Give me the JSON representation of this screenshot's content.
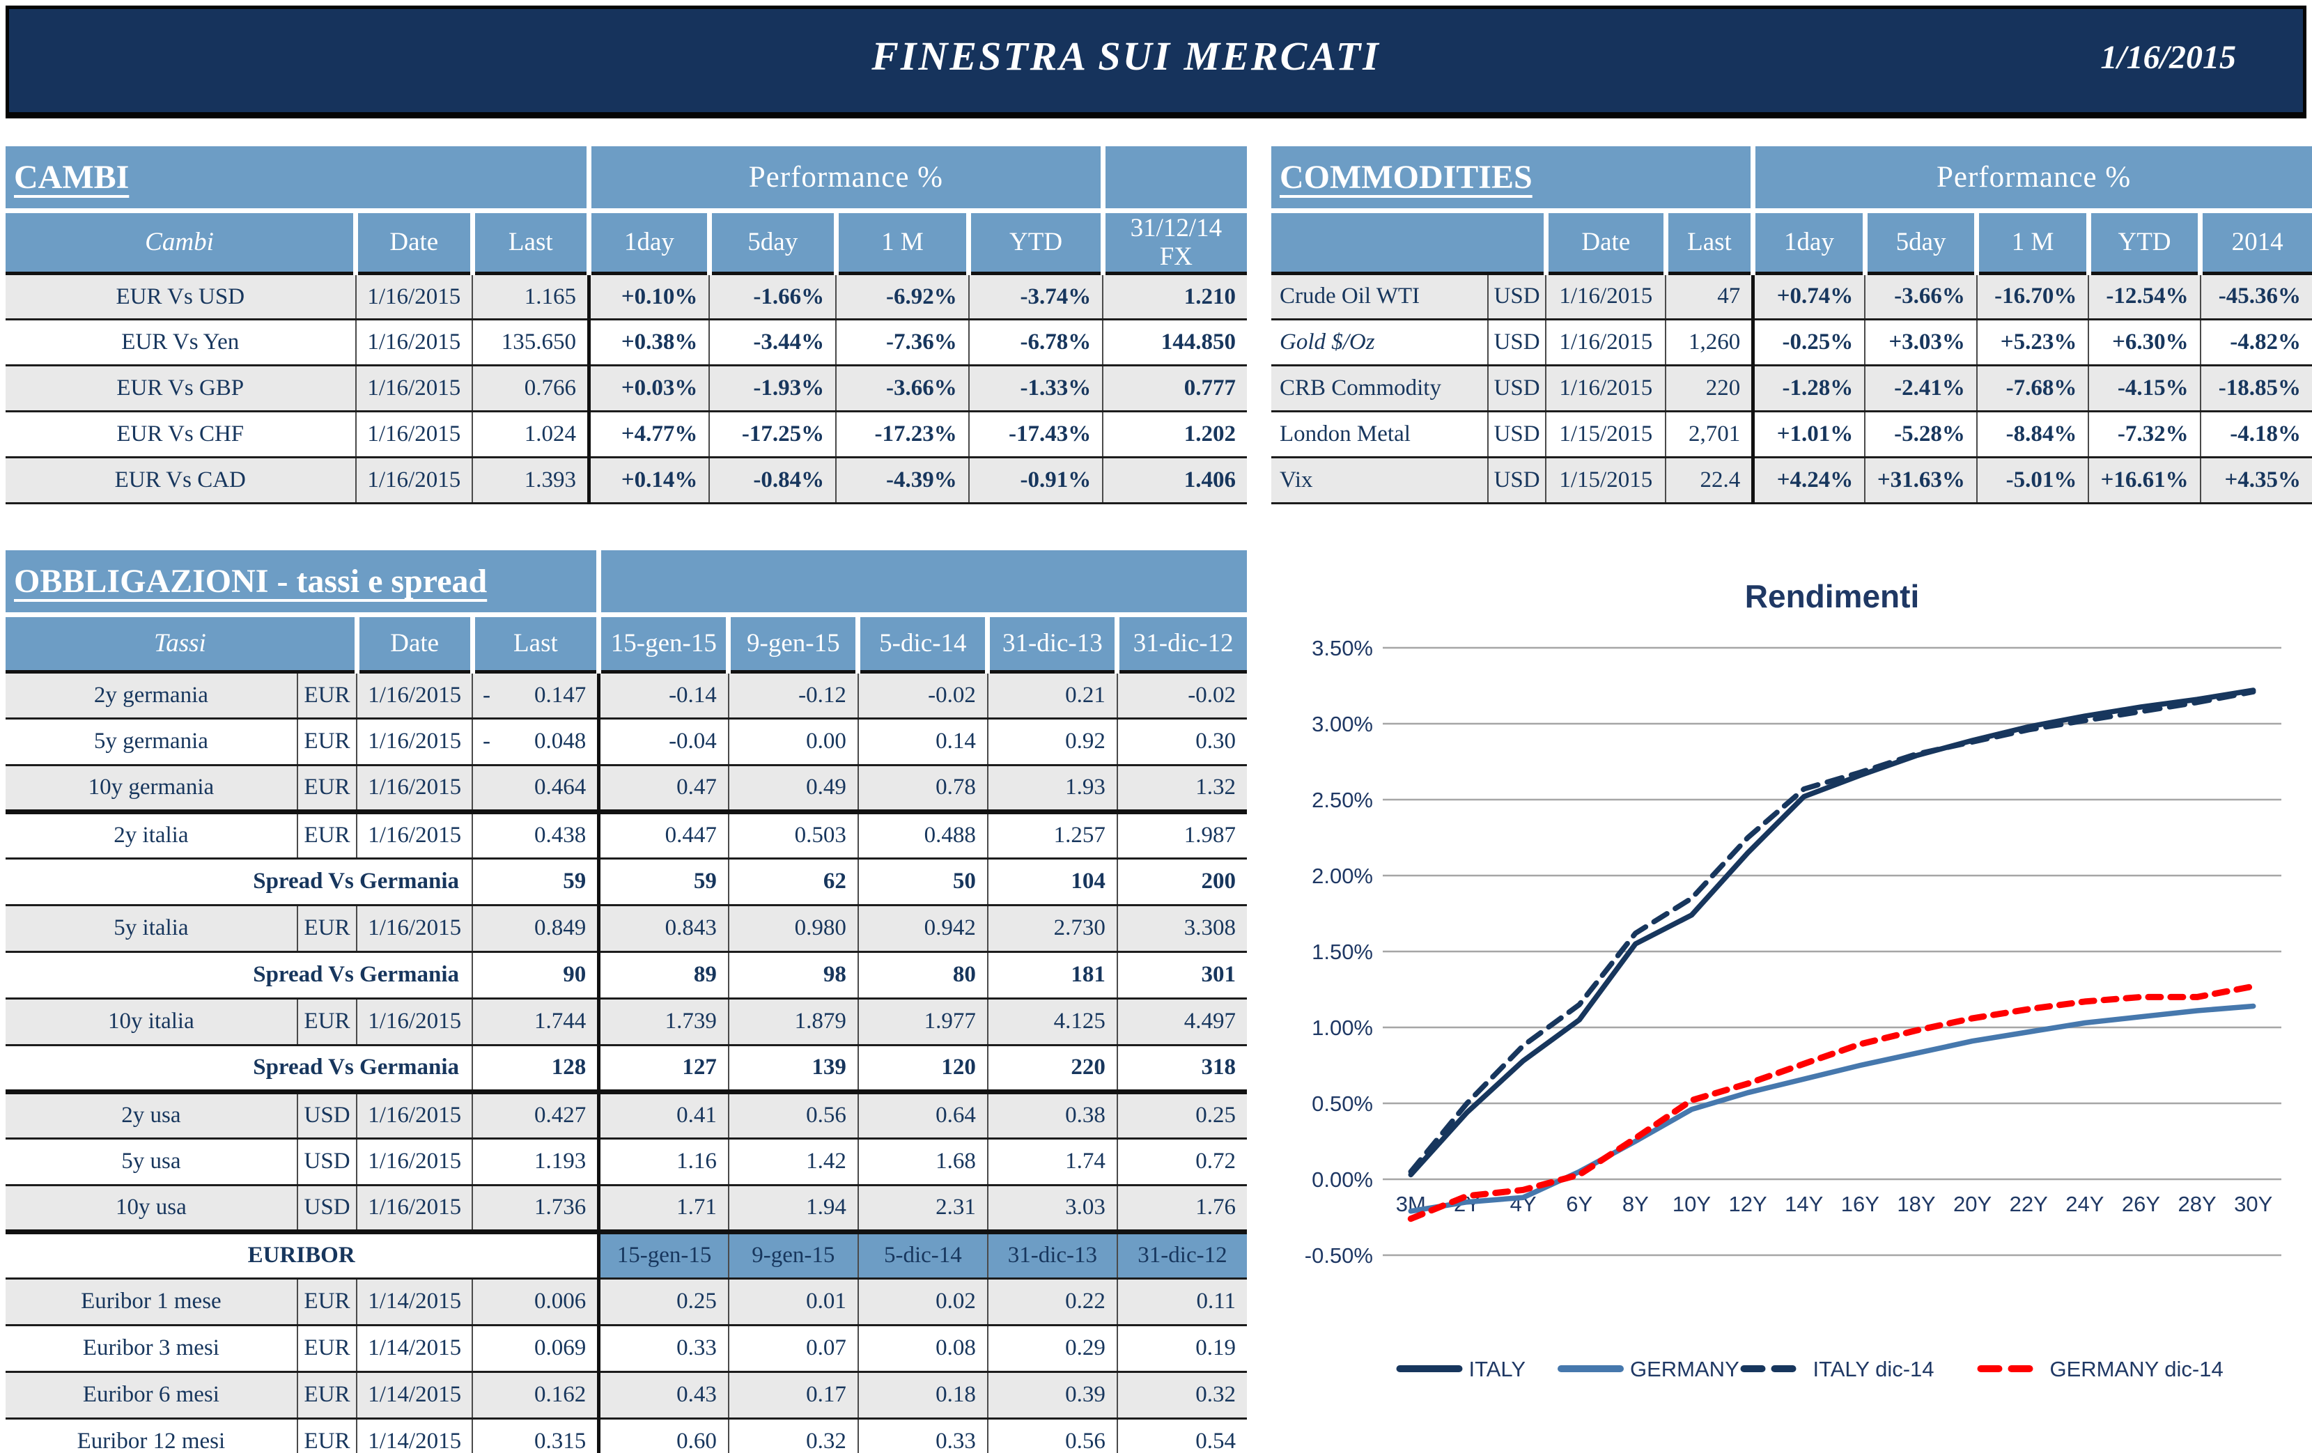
{
  "colors": {
    "accent_blue": "#6D9DC5",
    "navy_text": "#17365D",
    "topbar_navy": "#16335C",
    "positive": "#00A650",
    "negative": "#FF0000"
  },
  "header": {
    "title": "FINESTRA SUI MERCATI",
    "date": "1/16/2015"
  },
  "cambi": {
    "section_title": "CAMBI",
    "performance_label": "Performance %",
    "columns": [
      "Cambi",
      "Date",
      "Last",
      "1day",
      "5day",
      "1 M",
      "YTD",
      "31/12/14\nFX"
    ],
    "rows": [
      {
        "name": "EUR Vs USD",
        "date": "1/16/2015",
        "last": "1.165",
        "perf": [
          "+0.10%",
          "-1.66%",
          "-6.92%",
          "-3.74%"
        ],
        "fx": "1.210"
      },
      {
        "name": "EUR Vs Yen",
        "date": "1/16/2015",
        "last": "135.650",
        "perf": [
          "+0.38%",
          "-3.44%",
          "-7.36%",
          "-6.78%"
        ],
        "fx": "144.850"
      },
      {
        "name": "EUR Vs GBP",
        "date": "1/16/2015",
        "last": "0.766",
        "perf": [
          "+0.03%",
          "-1.93%",
          "-3.66%",
          "-1.33%"
        ],
        "fx": "0.777"
      },
      {
        "name": "EUR Vs CHF",
        "date": "1/16/2015",
        "last": "1.024",
        "perf": [
          "+4.77%",
          "-17.25%",
          "-17.23%",
          "-17.43%"
        ],
        "fx": "1.202"
      },
      {
        "name": "EUR Vs CAD",
        "date": "1/16/2015",
        "last": "1.393",
        "perf": [
          "+0.14%",
          "-0.84%",
          "-4.39%",
          "-0.91%"
        ],
        "fx": "1.406"
      }
    ]
  },
  "commodities": {
    "section_title": "COMMODITIES",
    "performance_label": "Performance %",
    "columns": [
      "Date",
      "Last",
      "1day",
      "5day",
      "1 M",
      "YTD",
      "2014"
    ],
    "rows": [
      {
        "name": "Crude Oil WTI",
        "italic": false,
        "currency": "USD",
        "date": "1/16/2015",
        "last": "47",
        "perf": [
          "+0.74%",
          "-3.66%",
          "-16.70%",
          "-12.54%",
          "-45.36%"
        ]
      },
      {
        "name": "Gold $/Oz",
        "italic": true,
        "currency": "USD",
        "date": "1/16/2015",
        "last": "1,260",
        "perf": [
          "-0.25%",
          "+3.03%",
          "+5.23%",
          "+6.30%",
          "-4.82%"
        ]
      },
      {
        "name": "CRB Commodity",
        "italic": false,
        "currency": "USD",
        "date": "1/16/2015",
        "last": "220",
        "perf": [
          "-1.28%",
          "-2.41%",
          "-7.68%",
          "-4.15%",
          "-18.85%"
        ]
      },
      {
        "name": "London Metal",
        "italic": false,
        "currency": "USD",
        "date": "1/15/2015",
        "last": "2,701",
        "perf": [
          "+1.01%",
          "-5.28%",
          "-8.84%",
          "-7.32%",
          "-4.18%"
        ]
      },
      {
        "name": "Vix",
        "italic": false,
        "currency": "USD",
        "date": "1/15/2015",
        "last": "22.4",
        "perf": [
          "+4.24%",
          "+31.63%",
          "-5.01%",
          "+16.61%",
          "+4.35%"
        ]
      }
    ]
  },
  "obbligazioni": {
    "section_title": "OBBLIGAZIONI - tassi e spread",
    "columns": [
      "Tassi",
      "Date",
      "Last",
      "15-gen-15",
      "9-gen-15",
      "5-dic-14",
      "31-dic-13",
      "31-dic-12"
    ],
    "euribor_label": "EURIBOR",
    "euribor_columns": [
      "15-gen-15",
      "9-gen-15",
      "5-dic-14",
      "31-dic-13",
      "31-dic-12"
    ],
    "rows": [
      {
        "type": "rate",
        "name": "2y germania",
        "currency": "EUR",
        "date": "1/16/2015",
        "last": "0.147",
        "last_negative": true,
        "values": [
          "-0.14",
          "-0.12",
          "-0.02",
          "0.21",
          "-0.02"
        ]
      },
      {
        "type": "rate",
        "name": "5y germania",
        "currency": "EUR",
        "date": "1/16/2015",
        "last": "0.048",
        "last_negative": true,
        "values": [
          "-0.04",
          "0.00",
          "0.14",
          "0.92",
          "0.30"
        ]
      },
      {
        "type": "rate",
        "name": "10y germania",
        "currency": "EUR",
        "date": "1/16/2015",
        "last": "0.464",
        "last_negative": false,
        "values": [
          "0.47",
          "0.49",
          "0.78",
          "1.93",
          "1.32"
        ]
      },
      {
        "type": "rate",
        "name": "2y italia",
        "currency": "EUR",
        "date": "1/16/2015",
        "last": "0.438",
        "last_negative": false,
        "thick_top": true,
        "values": [
          "0.447",
          "0.503",
          "0.488",
          "1.257",
          "1.987"
        ]
      },
      {
        "type": "spread",
        "label": "Spread Vs Germania",
        "last": "59",
        "values": [
          "59",
          "62",
          "50",
          "104",
          "200"
        ]
      },
      {
        "type": "rate",
        "name": "5y italia",
        "currency": "EUR",
        "date": "1/16/2015",
        "last": "0.849",
        "last_negative": false,
        "values": [
          "0.843",
          "0.980",
          "0.942",
          "2.730",
          "3.308"
        ]
      },
      {
        "type": "spread",
        "label": "Spread Vs Germania",
        "last": "90",
        "values": [
          "89",
          "98",
          "80",
          "181",
          "301"
        ]
      },
      {
        "type": "rate",
        "name": "10y italia",
        "currency": "EUR",
        "date": "1/16/2015",
        "last": "1.744",
        "last_negative": false,
        "values": [
          "1.739",
          "1.879",
          "1.977",
          "4.125",
          "4.497"
        ]
      },
      {
        "type": "spread",
        "label": "Spread Vs Germania",
        "last": "128",
        "values": [
          "127",
          "139",
          "120",
          "220",
          "318"
        ]
      },
      {
        "type": "rate",
        "name": "2y usa",
        "currency": "USD",
        "date": "1/16/2015",
        "last": "0.427",
        "last_negative": false,
        "thick_top": true,
        "values": [
          "0.41",
          "0.56",
          "0.64",
          "0.38",
          "0.25"
        ]
      },
      {
        "type": "rate",
        "name": "5y usa",
        "currency": "USD",
        "date": "1/16/2015",
        "last": "1.193",
        "last_negative": false,
        "values": [
          "1.16",
          "1.42",
          "1.68",
          "1.74",
          "0.72"
        ]
      },
      {
        "type": "rate",
        "name": "10y usa",
        "currency": "USD",
        "date": "1/16/2015",
        "last": "1.736",
        "last_negative": false,
        "values": [
          "1.71",
          "1.94",
          "2.31",
          "3.03",
          "1.76"
        ]
      },
      {
        "type": "euribor_header",
        "thick_top": true
      },
      {
        "type": "rate",
        "name": "Euribor 1 mese",
        "currency": "EUR",
        "date": "1/14/2015",
        "last": "0.006",
        "last_negative": false,
        "values": [
          "0.25",
          "0.01",
          "0.02",
          "0.22",
          "0.11"
        ]
      },
      {
        "type": "rate",
        "name": "Euribor 3 mesi",
        "currency": "EUR",
        "date": "1/14/2015",
        "last": "0.069",
        "last_negative": false,
        "values": [
          "0.33",
          "0.07",
          "0.08",
          "0.29",
          "0.19"
        ]
      },
      {
        "type": "rate",
        "name": "Euribor 6 mesi",
        "currency": "EUR",
        "date": "1/14/2015",
        "last": "0.162",
        "last_negative": false,
        "values": [
          "0.43",
          "0.17",
          "0.18",
          "0.39",
          "0.32"
        ]
      },
      {
        "type": "rate",
        "name": "Euribor 12 mesi",
        "currency": "EUR",
        "date": "1/14/2015",
        "last": "0.315",
        "last_negative": false,
        "values": [
          "0.60",
          "0.32",
          "0.33",
          "0.56",
          "0.54"
        ]
      }
    ]
  },
  "chart_data": {
    "type": "line",
    "title": "Rendimenti",
    "categories": [
      "3M",
      "2Y",
      "4Y",
      "6Y",
      "8Y",
      "10Y",
      "12Y",
      "14Y",
      "16Y",
      "18Y",
      "20Y",
      "22Y",
      "24Y",
      "26Y",
      "28Y",
      "30Y"
    ],
    "y_ticks": [
      "3.50%",
      "3.00%",
      "2.50%",
      "2.00%",
      "1.50%",
      "1.00%",
      "0.50%",
      "0.00%",
      "-0.50%"
    ],
    "ylim": [
      -0.5,
      3.5
    ],
    "grid": "horizontal",
    "legend_position": "bottom",
    "series": [
      {
        "name": "ITALY",
        "line": "solid",
        "color": "#17365D",
        "values": [
          0.03,
          0.44,
          0.78,
          1.05,
          1.55,
          1.74,
          2.15,
          2.52,
          2.66,
          2.79,
          2.89,
          2.98,
          3.05,
          3.11,
          3.16,
          3.22
        ]
      },
      {
        "name": "GERMANY",
        "line": "solid",
        "color": "#4678AD",
        "values": [
          -0.21,
          -0.15,
          -0.12,
          0.05,
          0.25,
          0.46,
          0.57,
          0.66,
          0.75,
          0.83,
          0.91,
          0.97,
          1.03,
          1.07,
          1.11,
          1.14
        ]
      },
      {
        "name": "ITALY dic-14",
        "line": "dashed",
        "color": "#17365D",
        "values": [
          0.05,
          0.5,
          0.88,
          1.15,
          1.62,
          1.85,
          2.25,
          2.57,
          2.68,
          2.8,
          2.88,
          2.96,
          3.02,
          3.08,
          3.14,
          3.21
        ]
      },
      {
        "name": "GERMANY dic-14",
        "line": "dashed",
        "color": "#FF0000",
        "values": [
          -0.26,
          -0.11,
          -0.07,
          0.03,
          0.27,
          0.52,
          0.63,
          0.76,
          0.89,
          0.98,
          1.06,
          1.12,
          1.17,
          1.2,
          1.2,
          1.27
        ]
      }
    ]
  }
}
